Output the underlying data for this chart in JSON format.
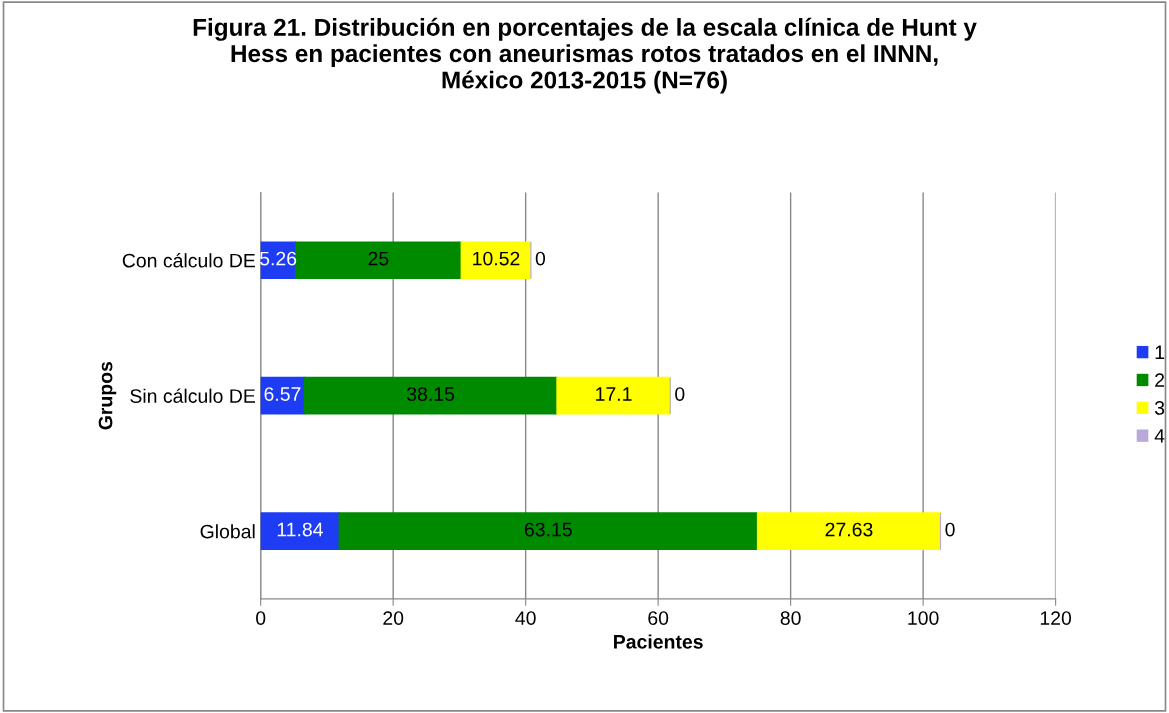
{
  "chart_data": {
    "type": "bar",
    "orientation": "horizontal",
    "stacked": true,
    "title": "Figura 21. Distribución en porcentajes de la escala clínica de Hunt y\nHess en pacientes con aneurismas rotos tratados en el INNN,\nMéxico 2013-2015 (N=76)",
    "xlabel": "Pacientes",
    "ylabel": "Grupos",
    "categories": [
      "Con cálculo DE",
      "Sin cálculo DE",
      "Global"
    ],
    "series": [
      {
        "name": "1",
        "color": "#1f3cf5",
        "values": [
          5.26,
          6.57,
          11.84
        ]
      },
      {
        "name": "2",
        "color": "#008a00",
        "values": [
          25,
          38.15,
          63.15
        ]
      },
      {
        "name": "3",
        "color": "#ffff00",
        "values": [
          10.52,
          17.1,
          27.63
        ]
      },
      {
        "name": "4",
        "color": "#b9a9d9",
        "values": [
          0,
          0,
          0
        ]
      }
    ],
    "xlim": [
      0,
      120
    ],
    "xticks": [
      0,
      20,
      40,
      60,
      80,
      100,
      120
    ],
    "grid": "x",
    "legend": "right",
    "data_labels": true
  }
}
